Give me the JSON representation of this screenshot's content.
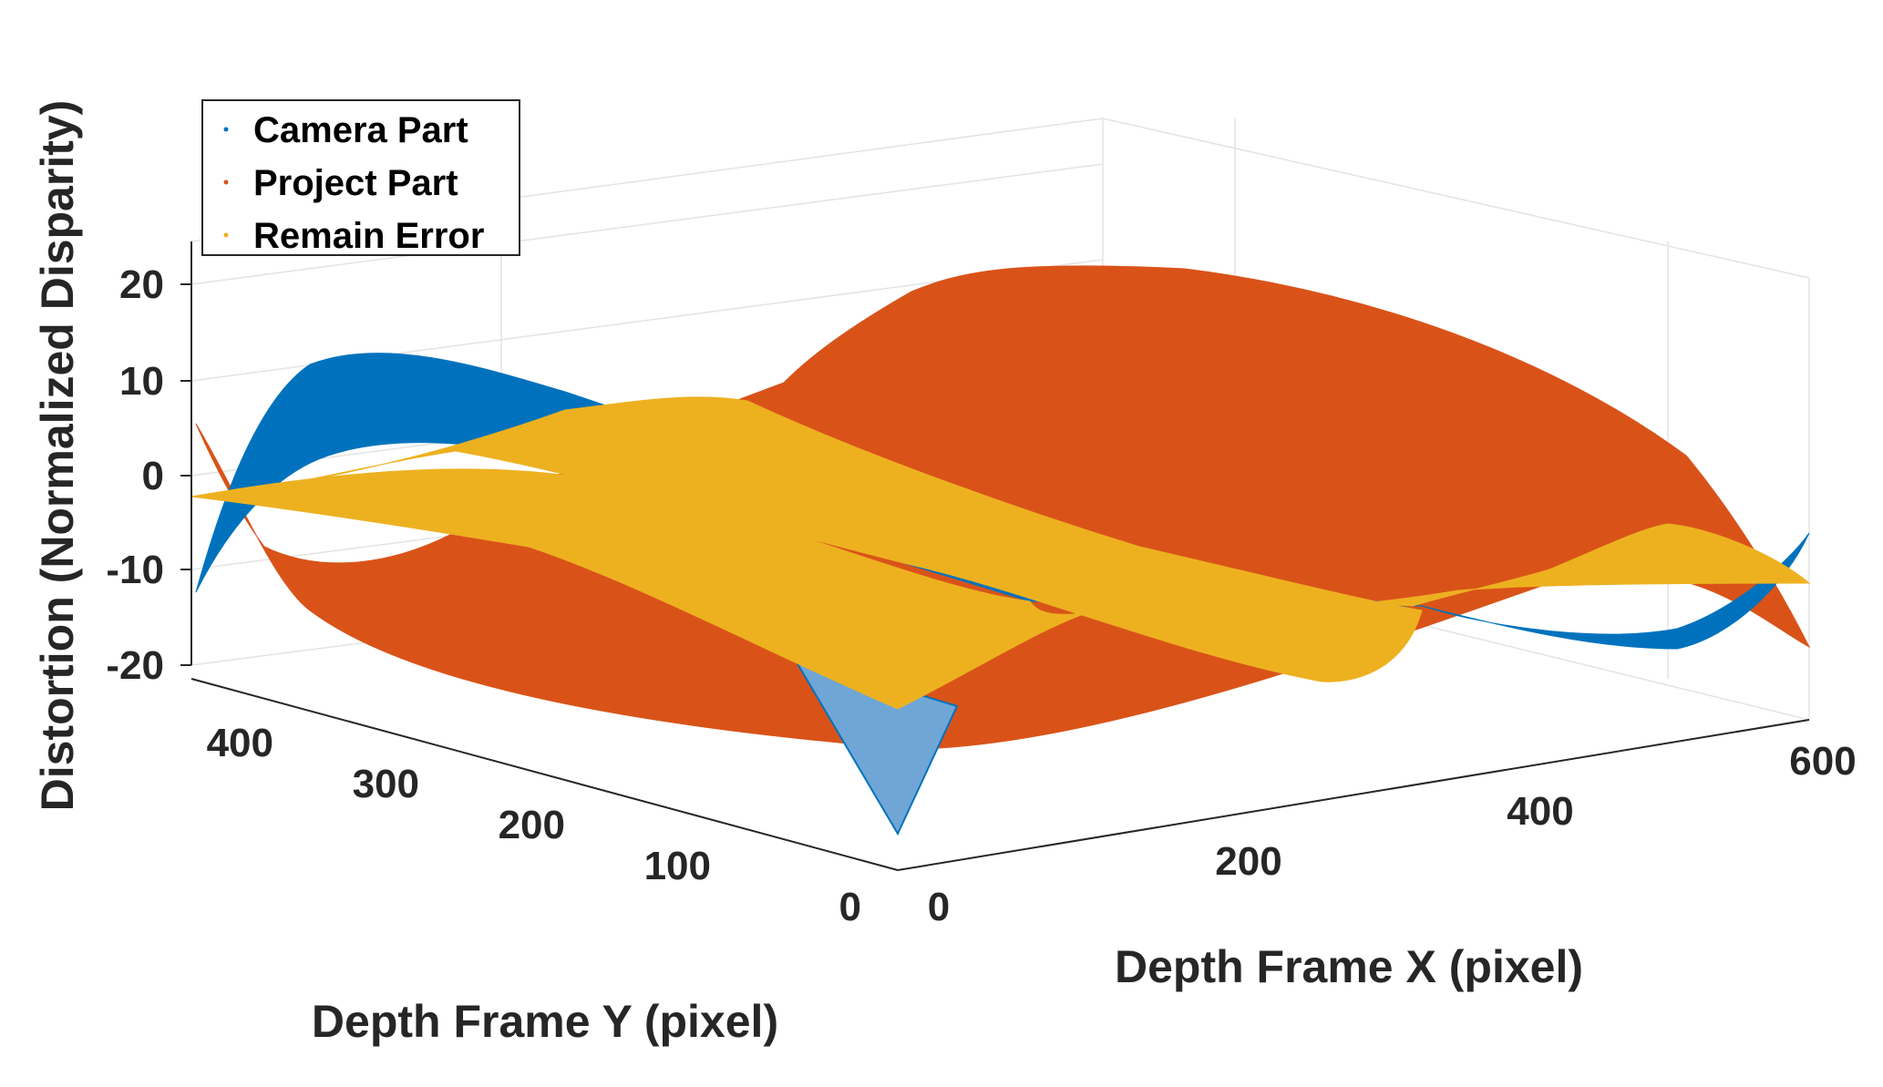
{
  "chart_data": {
    "type": "surface3d",
    "title": "",
    "xlabel": "Depth Frame X (pixel)",
    "ylabel": "Depth Frame Y (pixel)",
    "zlabel": "Distortion (Normalized Disparity)",
    "xlim": [
      0,
      640
    ],
    "ylim": [
      0,
      480
    ],
    "zlim": [
      -20,
      20
    ],
    "xticks": [
      "0",
      "200",
      "400",
      "600"
    ],
    "yticks": [
      "0",
      "100",
      "200",
      "300",
      "400"
    ],
    "zticks": [
      "20",
      "10",
      "0",
      "-10",
      "-20"
    ],
    "grid": true,
    "legend": {
      "position": "top-left",
      "entries": [
        "Camera Part",
        "Project Part",
        "Remain Error"
      ]
    },
    "series": [
      {
        "name": "Camera Part",
        "color": "#0072BD",
        "description_values": {
          "x": [
            0,
            320,
            640
          ],
          "z_at_y0": [
            -2,
            -3,
            -10
          ],
          "z_max": 13,
          "z_min": -18
        }
      },
      {
        "name": "Project Part",
        "color": "#D95319",
        "description_values": {
          "x": [
            0,
            320,
            640
          ],
          "z_center": 20,
          "z_edge": -14
        }
      },
      {
        "name": "Remain Error",
        "color": "#EDB120",
        "description_values": {
          "x": [
            0,
            320,
            640
          ],
          "z_center": -8,
          "z_edge": -2
        }
      }
    ]
  }
}
